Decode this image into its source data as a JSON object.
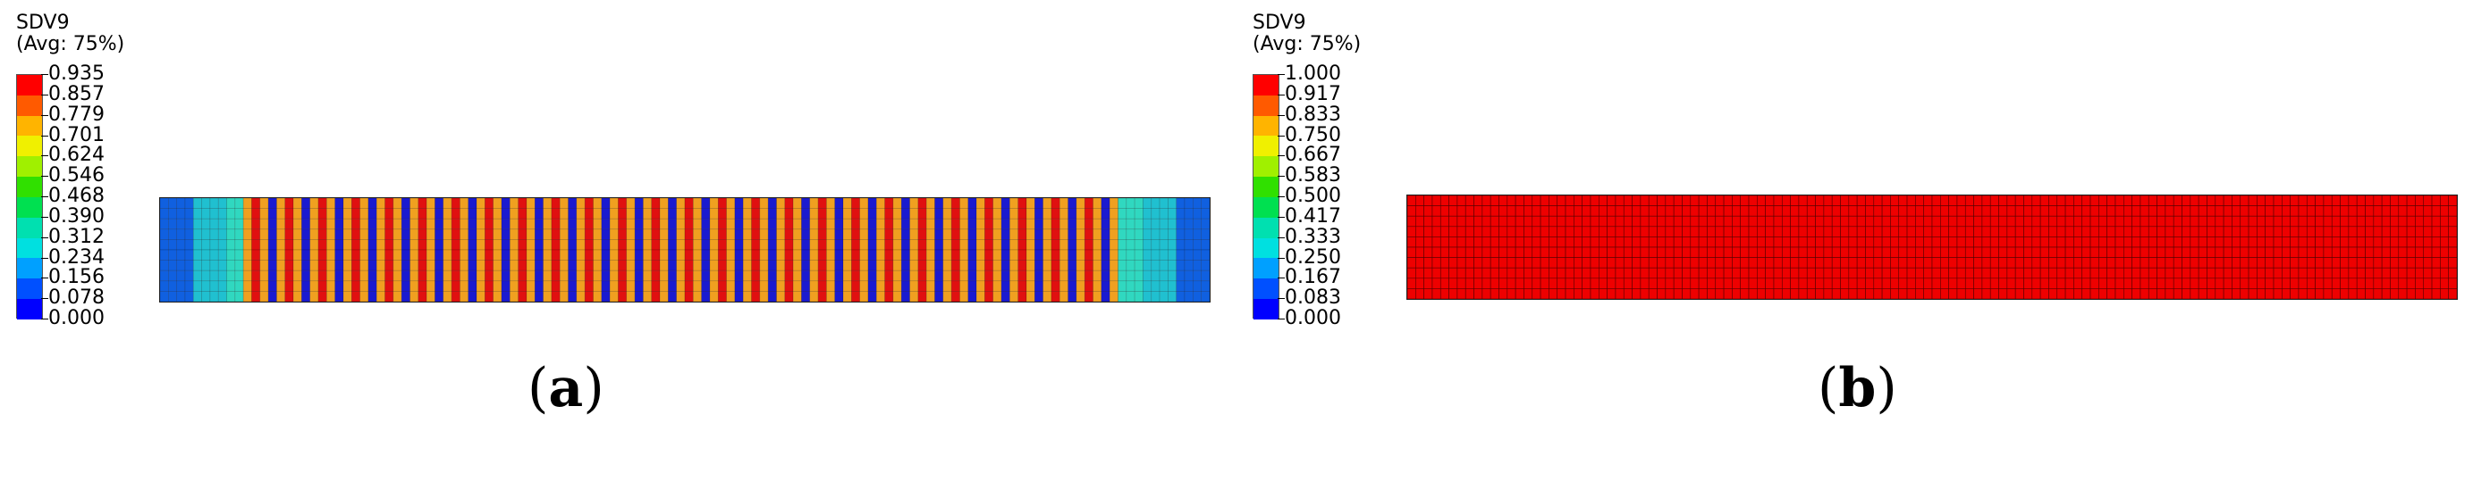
{
  "panels": [
    {
      "id": "a",
      "legend": {
        "variable": "SDV9",
        "avg_note": "(Avg: 75%)",
        "ticks": [
          "0.935",
          "0.857",
          "0.779",
          "0.701",
          "0.624",
          "0.546",
          "0.468",
          "0.390",
          "0.312",
          "0.234",
          "0.156",
          "0.078",
          "0.000"
        ],
        "colors": [
          "#ff0000",
          "#ff5a00",
          "#ffb400",
          "#f0f000",
          "#a0f000",
          "#30e000",
          "#00e050",
          "#00e0b0",
          "#00e0e0",
          "#00a0ff",
          "#0050ff",
          "#0000ff"
        ]
      },
      "model": {
        "description_contour": "striped",
        "pattern": {
          "blue": "#1a1ad0",
          "orange": "#f0a020",
          "red": "#e01010",
          "edge_cyan": "#30d8c0",
          "edge_teal": "#20c0d0",
          "edge_blue": "#1060e0"
        }
      },
      "caption": {
        "open": "(",
        "letter": "a",
        "close": ")"
      }
    },
    {
      "id": "b",
      "legend": {
        "variable": "SDV9",
        "avg_note": "(Avg: 75%)",
        "ticks": [
          "1.000",
          "0.917",
          "0.833",
          "0.750",
          "0.667",
          "0.583",
          "0.500",
          "0.417",
          "0.333",
          "0.250",
          "0.167",
          "0.083",
          "0.000"
        ],
        "colors": [
          "#ff0000",
          "#ff5a00",
          "#ffb400",
          "#f0f000",
          "#a0f000",
          "#30e000",
          "#00e050",
          "#00e0b0",
          "#00e0e0",
          "#00a0ff",
          "#0050ff",
          "#0000ff"
        ]
      },
      "model": {
        "fill": "#ee0000",
        "mesh": "#5a0000"
      },
      "caption": {
        "open": "(",
        "letter": "b",
        "close": ")"
      }
    }
  ]
}
